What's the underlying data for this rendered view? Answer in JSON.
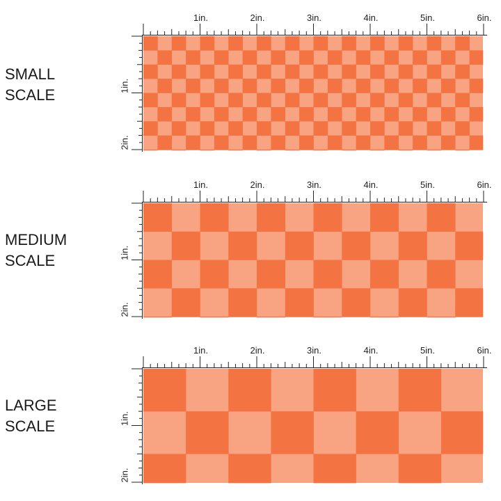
{
  "colors": {
    "dark": "#f37343",
    "light": "#f8a482",
    "ruler": "#222222",
    "background": "#ffffff"
  },
  "ruler": {
    "inch_labels": [
      "1in.",
      "2in.",
      "3in.",
      "4in.",
      "5in.",
      "6in."
    ],
    "vertical_labels": [
      "1in.",
      "2in."
    ]
  },
  "panels": [
    {
      "id": "small",
      "label_line1": "SMALL",
      "label_line2": "SCALE",
      "squares_per_inch": 4,
      "note": "checkerboard pattern"
    },
    {
      "id": "medium",
      "label_line1": "MEDIUM",
      "label_line2": "SCALE",
      "squares_per_inch": 2,
      "note": "checkerboard pattern"
    },
    {
      "id": "large",
      "label_line1": "LARGE",
      "label_line2": "SCALE",
      "squares_per_inch": 1.3333,
      "note": "checkerboard pattern"
    }
  ]
}
